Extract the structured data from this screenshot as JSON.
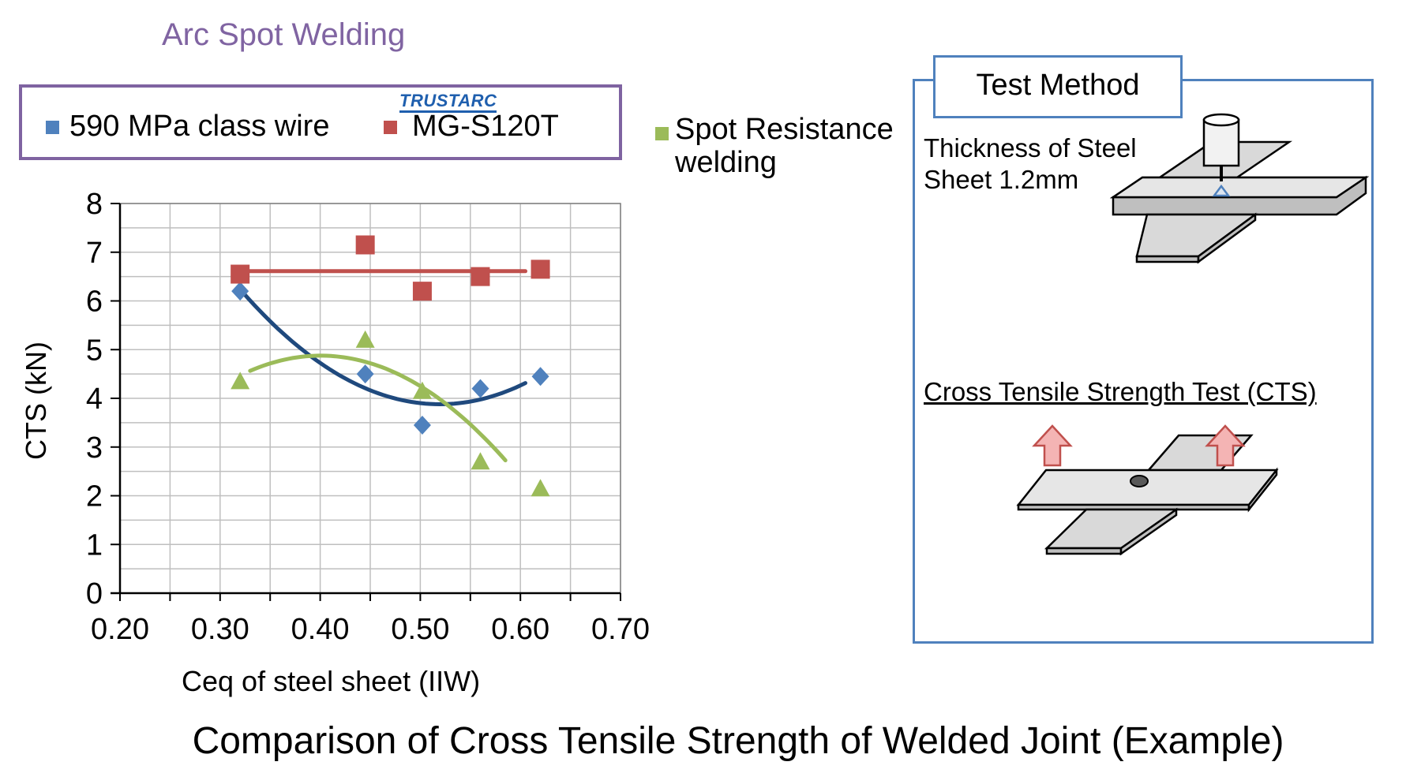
{
  "header": {
    "arc_title": "Arc Spot Welding"
  },
  "legend": {
    "brand_logo": "TRUSTARC",
    "items": [
      {
        "label": "590 MPa class wire",
        "color": "#4f81bd",
        "marker": "diamond"
      },
      {
        "label": "MG-S120T",
        "color": "#c0504d",
        "marker": "square"
      },
      {
        "label": "Spot Resistance welding",
        "color": "#9bbb59",
        "marker": "triangle"
      }
    ]
  },
  "test_method": {
    "tab_label": "Test Method",
    "thickness_label": "Thickness of Steel Sheet 1.2mm",
    "cts_test_label": "Cross Tensile Strength Test (CTS)",
    "panel_color": "#4f81bd"
  },
  "caption": "Comparison of Cross Tensile Strength of Welded Joint (Example)",
  "chart_data": {
    "type": "scatter",
    "xlabel": "Ceq of steel sheet (IIW)",
    "ylabel": "CTS (kN)",
    "xlim": [
      0.2,
      0.7
    ],
    "ylim": [
      0,
      8
    ],
    "x_ticks": [
      "0.20",
      "0.30",
      "0.40",
      "0.50",
      "0.60",
      "0.70"
    ],
    "y_ticks": [
      "0",
      "1",
      "2",
      "3",
      "4",
      "5",
      "6",
      "7",
      "8"
    ],
    "grid": true,
    "series": [
      {
        "name": "590 MPa class wire",
        "marker": "diamond",
        "color": "#4f81bd",
        "trend_color": "#1f497d",
        "points": [
          [
            0.32,
            6.2
          ],
          [
            0.445,
            4.5
          ],
          [
            0.502,
            3.45
          ],
          [
            0.56,
            4.2
          ],
          [
            0.62,
            4.45
          ]
        ],
        "trendline": {
          "kind": "polynomial",
          "range": [
            0.32,
            0.605
          ]
        }
      },
      {
        "name": "MG-S120T",
        "marker": "square",
        "color": "#c0504d",
        "trend_color": "#c0504d",
        "points": [
          [
            0.32,
            6.55
          ],
          [
            0.445,
            7.15
          ],
          [
            0.502,
            6.2
          ],
          [
            0.56,
            6.5
          ],
          [
            0.62,
            6.65
          ]
        ],
        "trendline": {
          "kind": "linear",
          "range": [
            0.32,
            0.605
          ]
        }
      },
      {
        "name": "Spot Resistance welding",
        "marker": "triangle",
        "color": "#9bbb59",
        "trend_color": "#9bbb59",
        "points": [
          [
            0.32,
            4.35
          ],
          [
            0.445,
            5.2
          ],
          [
            0.502,
            4.15
          ],
          [
            0.56,
            2.7
          ],
          [
            0.62,
            2.15
          ]
        ],
        "trendline": {
          "kind": "polynomial",
          "range": [
            0.33,
            0.585
          ]
        }
      }
    ]
  }
}
